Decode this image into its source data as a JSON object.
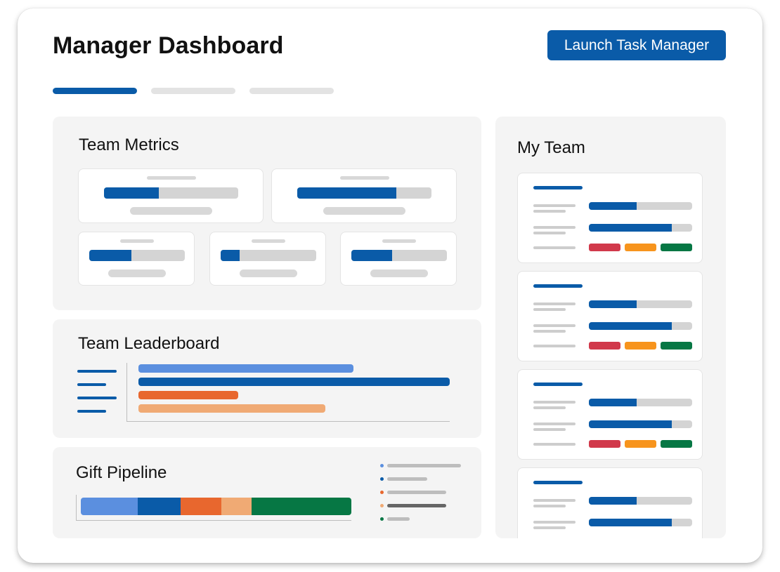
{
  "header": {
    "title": "Manager Dashboard",
    "launch_label": "Launch Task Manager"
  },
  "tabs": [
    {
      "active": true
    },
    {
      "active": false
    },
    {
      "active": false
    }
  ],
  "team_metrics": {
    "title": "Team Metrics",
    "cards": [
      {
        "progress": 0.41
      },
      {
        "progress": 0.74
      },
      {
        "progress": 0.44
      },
      {
        "progress": 0.2
      },
      {
        "progress": 0.43
      }
    ]
  },
  "leaderboard": {
    "title": "Team Leaderboard",
    "bars": [
      {
        "value": 0.69,
        "color": "#5b8fdf"
      },
      {
        "value": 1.0,
        "color": "#0a5ba8"
      },
      {
        "value": 0.32,
        "color": "#e8672e"
      },
      {
        "value": 0.6,
        "color": "#f0aa74"
      }
    ]
  },
  "gift_pipeline": {
    "title": "Gift Pipeline",
    "segments": [
      {
        "share": 0.21,
        "color": "#5b8fdf"
      },
      {
        "share": 0.16,
        "color": "#0a5ba8"
      },
      {
        "share": 0.15,
        "color": "#e8672e"
      },
      {
        "share": 0.11,
        "color": "#f0aa74"
      },
      {
        "share": 0.37,
        "color": "#067744"
      }
    ],
    "legend_colors": [
      "#5b8fdf",
      "#0a5ba8",
      "#e8672e",
      "#f0aa74",
      "#067744"
    ]
  },
  "my_team": {
    "title": "My Team",
    "members": [
      {
        "progress_a": 0.46,
        "progress_b": 0.8
      },
      {
        "progress_a": 0.46,
        "progress_b": 0.8
      },
      {
        "progress_a": 0.46,
        "progress_b": 0.8
      },
      {
        "progress_a": 0.46,
        "progress_b": 0.8
      }
    ],
    "status_colors": [
      "#d1394b",
      "#f7941d",
      "#067744"
    ]
  }
}
